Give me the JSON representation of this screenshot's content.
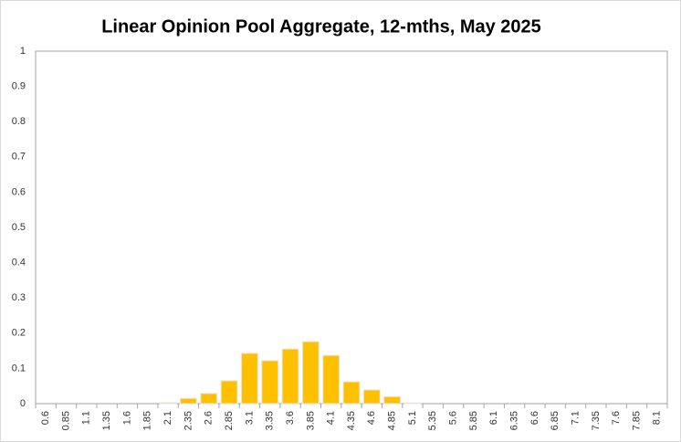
{
  "chart_data": {
    "type": "bar",
    "title": "Linear Opinion Pool Aggregate, 12-mths, May 2025",
    "categories": [
      "0.6",
      "0.85",
      "1.1",
      "1.35",
      "1.6",
      "1.85",
      "2.1",
      "2.35",
      "2.6",
      "2.85",
      "3.1",
      "3.35",
      "3.6",
      "3.85",
      "4.1",
      "4.35",
      "4.6",
      "4.85",
      "5.1",
      "5.35",
      "5.6",
      "5.85",
      "6.1",
      "6.35",
      "6.6",
      "6.85",
      "7.1",
      "7.35",
      "7.6",
      "7.85",
      "8.1"
    ],
    "values": [
      0,
      0,
      0,
      0,
      0,
      0,
      0.003,
      0.015,
      0.029,
      0.065,
      0.143,
      0.122,
      0.155,
      0.176,
      0.137,
      0.062,
      0.039,
      0.02,
      0.002,
      0,
      0,
      0,
      0,
      0,
      0,
      0,
      0,
      0,
      0,
      0,
      0
    ],
    "color": "#ffc000",
    "ylim": [
      0,
      1
    ],
    "yticks": [
      0,
      0.1,
      0.2,
      0.3,
      0.4,
      0.5,
      0.6,
      0.7,
      0.8,
      0.9,
      1
    ],
    "grid": false
  }
}
